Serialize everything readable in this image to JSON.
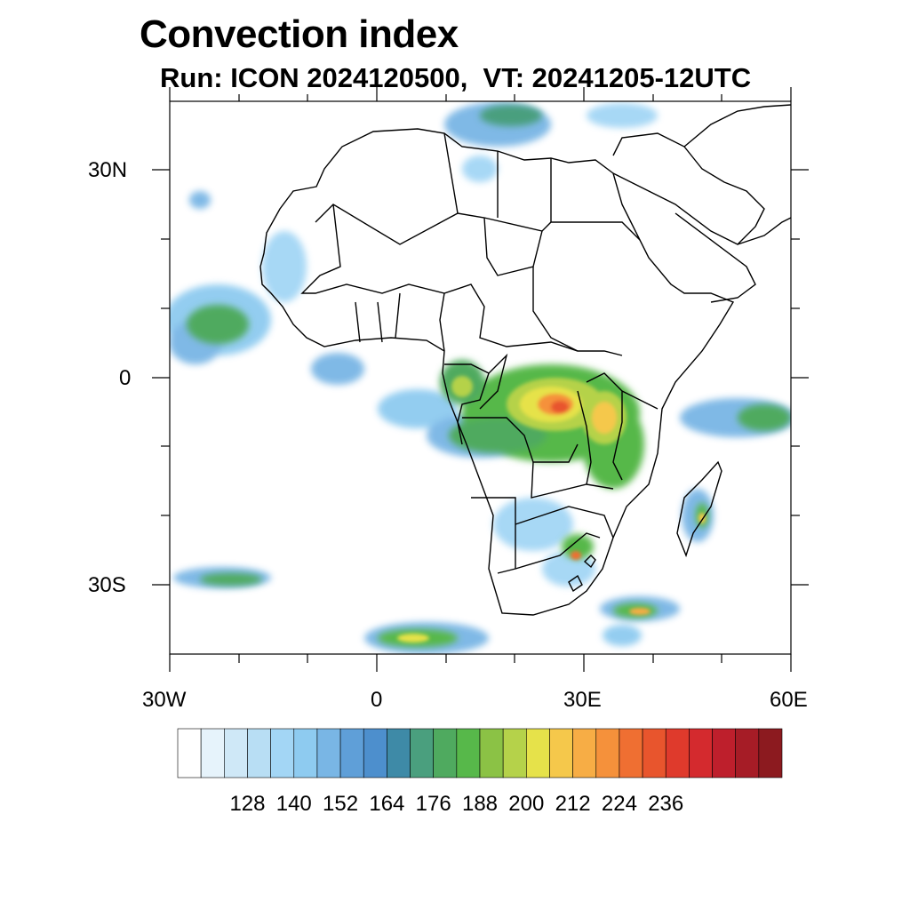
{
  "title": "Convection index",
  "subtitle": "Run: ICON 2024120500,  VT: 20241205-12UTC",
  "map": {
    "lon_range": [
      -30,
      60
    ],
    "lat_range": [
      -40,
      40
    ],
    "x_tick_labels": [
      "30W",
      "0",
      "30E",
      "60E"
    ],
    "y_tick_labels": [
      "30N",
      "0",
      "30S"
    ],
    "field": "convection index"
  },
  "colorbar": {
    "label_values": [
      "128",
      "140",
      "152",
      "164",
      "176",
      "188",
      "200",
      "212",
      "224",
      "236"
    ],
    "colors": [
      "#ffffff",
      "#e6f3fb",
      "#cfe8f7",
      "#b8def4",
      "#a3d6f5",
      "#8ecbf0",
      "#79b6e5",
      "#5f9fd8",
      "#4d8fcd",
      "#3e8aa7",
      "#4a9f7e",
      "#4faa5f",
      "#57b84a",
      "#8bc245",
      "#b5d24a",
      "#e6e24a",
      "#f5c84b",
      "#f7ad45",
      "#f5913b",
      "#ef6f32",
      "#e8552d",
      "#df3a2c",
      "#d42a2e",
      "#be1f2c",
      "#a61c26",
      "#8c1a1f"
    ]
  }
}
